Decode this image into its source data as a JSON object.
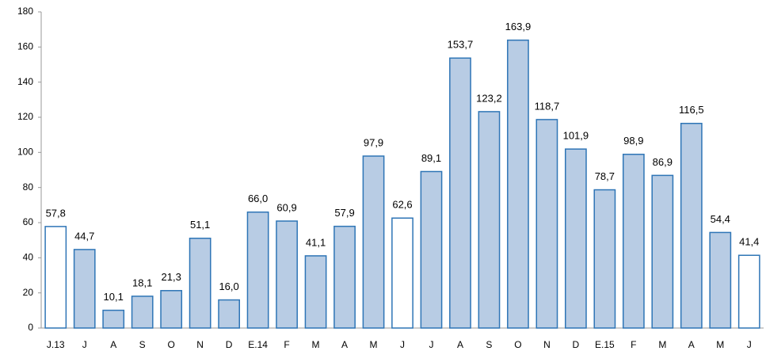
{
  "chart_data": {
    "type": "bar",
    "categories": [
      "J.13",
      "J",
      "A",
      "S",
      "O",
      "N",
      "D",
      "E.14",
      "F",
      "M",
      "A",
      "M",
      "J",
      "J",
      "A",
      "S",
      "O",
      "N",
      "D",
      "E.15",
      "F",
      "M",
      "A",
      "M",
      "J"
    ],
    "values": [
      57.8,
      44.7,
      10.1,
      18.1,
      21.3,
      51.1,
      16.0,
      66.0,
      60.9,
      41.1,
      57.9,
      97.9,
      62.6,
      89.1,
      153.7,
      123.2,
      163.9,
      118.7,
      101.9,
      78.7,
      98.9,
      86.9,
      116.5,
      54.4,
      41.4
    ],
    "value_labels": [
      "57,8",
      "44,7",
      "10,1",
      "18,1",
      "21,3",
      "51,1",
      "16,0",
      "66,0",
      "60,9",
      "41,1",
      "57,9",
      "97,9",
      "62,6",
      "89,1",
      "153,7",
      "123,2",
      "163,9",
      "118,7",
      "101,9",
      "78,7",
      "98,9",
      "86,9",
      "116,5",
      "54,4",
      "41,4"
    ],
    "colors": [
      "#ffffff",
      "#b8cce4",
      "#b8cce4",
      "#b8cce4",
      "#b8cce4",
      "#b8cce4",
      "#b8cce4",
      "#b8cce4",
      "#b8cce4",
      "#b8cce4",
      "#b8cce4",
      "#b8cce4",
      "#ffffff",
      "#b8cce4",
      "#b8cce4",
      "#b8cce4",
      "#b8cce4",
      "#b8cce4",
      "#b8cce4",
      "#b8cce4",
      "#b8cce4",
      "#b8cce4",
      "#b8cce4",
      "#b8cce4",
      "#ffffff"
    ],
    "edge_color": "#2e75b6",
    "ylim": [
      0,
      180
    ],
    "yticks": [
      0,
      20,
      40,
      60,
      80,
      100,
      120,
      140,
      160,
      180
    ],
    "grid": false
  }
}
